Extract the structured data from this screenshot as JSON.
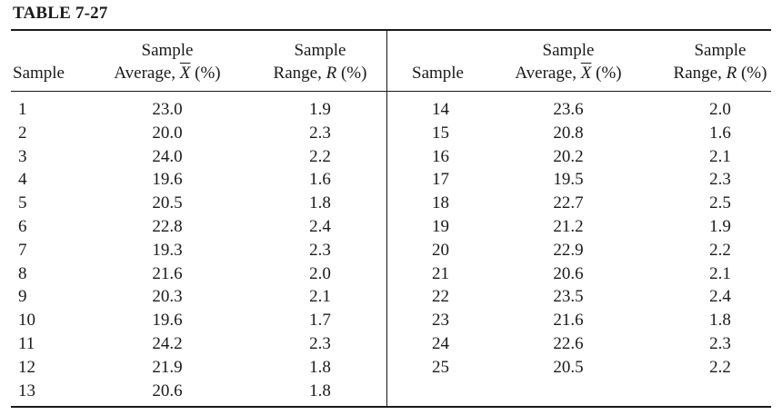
{
  "table": {
    "caption": "TABLE 7-27",
    "headers": {
      "sample": "Sample",
      "average_line1": "Sample",
      "average_prefix": "Average, ",
      "average_symbol": "X",
      "average_suffix": " (%)",
      "range_line1": "Sample",
      "range_prefix": "Range, ",
      "range_symbol": "R",
      "range_suffix": " (%)"
    },
    "left_rows": [
      {
        "sample": "1",
        "average": "23.0",
        "range": "1.9"
      },
      {
        "sample": "2",
        "average": "20.0",
        "range": "2.3"
      },
      {
        "sample": "3",
        "average": "24.0",
        "range": "2.2"
      },
      {
        "sample": "4",
        "average": "19.6",
        "range": "1.6"
      },
      {
        "sample": "5",
        "average": "20.5",
        "range": "1.8"
      },
      {
        "sample": "6",
        "average": "22.8",
        "range": "2.4"
      },
      {
        "sample": "7",
        "average": "19.3",
        "range": "2.3"
      },
      {
        "sample": "8",
        "average": "21.6",
        "range": "2.0"
      },
      {
        "sample": "9",
        "average": "20.3",
        "range": "2.1"
      },
      {
        "sample": "10",
        "average": "19.6",
        "range": "1.7"
      },
      {
        "sample": "11",
        "average": "24.2",
        "range": "2.3"
      },
      {
        "sample": "12",
        "average": "21.9",
        "range": "1.8"
      },
      {
        "sample": "13",
        "average": "20.6",
        "range": "1.8"
      }
    ],
    "right_rows": [
      {
        "sample": "14",
        "average": "23.6",
        "range": "2.0"
      },
      {
        "sample": "15",
        "average": "20.8",
        "range": "1.6"
      },
      {
        "sample": "16",
        "average": "20.2",
        "range": "2.1"
      },
      {
        "sample": "17",
        "average": "19.5",
        "range": "2.3"
      },
      {
        "sample": "18",
        "average": "22.7",
        "range": "2.5"
      },
      {
        "sample": "19",
        "average": "21.2",
        "range": "1.9"
      },
      {
        "sample": "20",
        "average": "22.9",
        "range": "2.2"
      },
      {
        "sample": "21",
        "average": "20.6",
        "range": "2.1"
      },
      {
        "sample": "22",
        "average": "23.5",
        "range": "2.4"
      },
      {
        "sample": "23",
        "average": "21.6",
        "range": "1.8"
      },
      {
        "sample": "24",
        "average": "22.6",
        "range": "2.3"
      },
      {
        "sample": "25",
        "average": "20.5",
        "range": "2.2"
      }
    ]
  }
}
